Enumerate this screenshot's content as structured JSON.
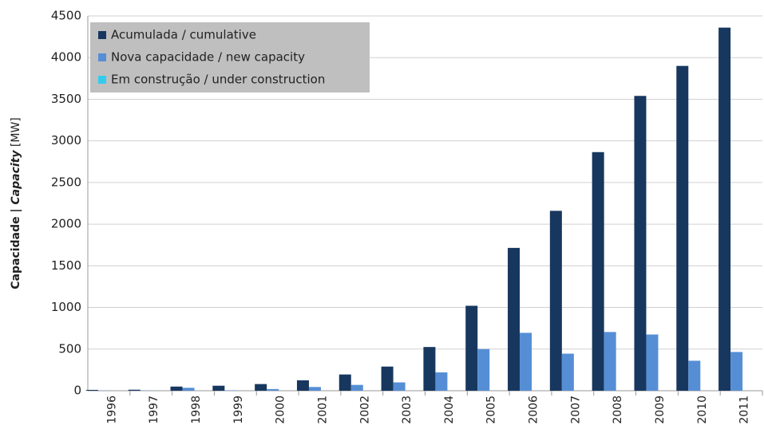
{
  "chart_data": {
    "type": "bar",
    "ylabel_parts": [
      "Capacidade | ",
      "Capacity",
      " [MW]"
    ],
    "categories": [
      "1996",
      "1997",
      "1998",
      "1999",
      "2000",
      "2001",
      "2002",
      "2003",
      "2004",
      "2005",
      "2006",
      "2007",
      "2008",
      "2009",
      "2010",
      "2011"
    ],
    "series": [
      {
        "name": "Acumulada / cumulative",
        "color": "#17375e",
        "values": [
          10,
          12,
          50,
          60,
          80,
          125,
          195,
          290,
          525,
          1020,
          1715,
          2160,
          2865,
          3540,
          3900,
          4360
        ]
      },
      {
        "name": "Nova capacidade / new capacity",
        "color": "#558ed5",
        "values": [
          3,
          2,
          35,
          5,
          20,
          45,
          70,
          100,
          220,
          500,
          695,
          445,
          705,
          675,
          360,
          465
        ]
      },
      {
        "name": "Em construção / under construction",
        "color": "#33ccee",
        "values": [
          0,
          0,
          0,
          0,
          0,
          0,
          0,
          0,
          0,
          0,
          0,
          0,
          0,
          0,
          0,
          0
        ]
      }
    ],
    "ylim": [
      0,
      4500
    ],
    "yticks": [
      0,
      500,
      1000,
      1500,
      2000,
      2500,
      3000,
      3500,
      4000,
      4500
    ],
    "grid": true,
    "legend": "top-left"
  }
}
